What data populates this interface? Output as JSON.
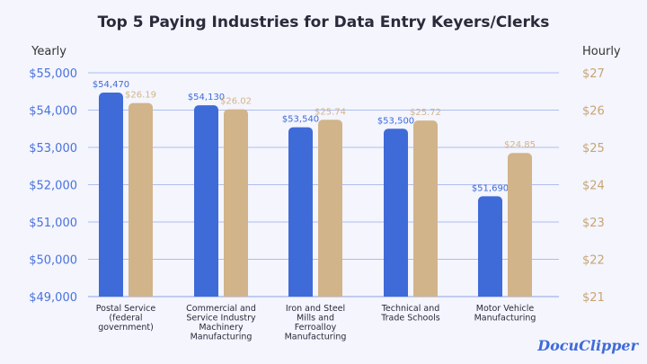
{
  "chart_data": {
    "type": "bar",
    "title": "Top 5 Paying Industries for Data Entry Keyers/Clerks",
    "ylabel_left": "Yearly",
    "ylabel_right": "Hourly",
    "categories": [
      [
        "Postal Service",
        "(federal",
        "government)"
      ],
      [
        "Commercial and",
        "Service Industry",
        "Machinery",
        "Manufacturing"
      ],
      [
        "Iron and Steel",
        "Mills and",
        "Ferroalloy",
        "Manufacturing"
      ],
      [
        "Technical and",
        "Trade Schools"
      ],
      [
        "Motor Vehicle",
        "Manufacturing"
      ]
    ],
    "series": [
      {
        "axis": "left",
        "color": "#3f6bd8",
        "values": [
          54470,
          54130,
          53540,
          53500,
          51690
        ],
        "labels": [
          "$54,470",
          "$54,130",
          "$53,540",
          "$53,500",
          "$51,690"
        ]
      },
      {
        "axis": "right",
        "color": "#d2b48a",
        "values": [
          26.19,
          26.02,
          25.74,
          25.72,
          24.85
        ],
        "labels": [
          "$26.19",
          "$26.02",
          "$25.74",
          "$25.72",
          "$24.85"
        ]
      }
    ],
    "ylim_left": [
      49000,
      55000
    ],
    "ylim_right": [
      21,
      27
    ],
    "yticks_left": [
      "$49,000",
      "$50,000",
      "$51,000",
      "$52,000",
      "$53,000",
      "$54,000",
      "$55,000"
    ],
    "yticks_right": [
      "$21",
      "$22",
      "$23",
      "$24",
      "$25",
      "$26",
      "$27"
    ],
    "grid": true,
    "left_axis_color": "#4a72dc",
    "right_axis_color": "#c7a574",
    "grid_color": "#aebdf0"
  },
  "brand": {
    "logo_text": "DocuClipper",
    "color": "#3f6bd8"
  }
}
